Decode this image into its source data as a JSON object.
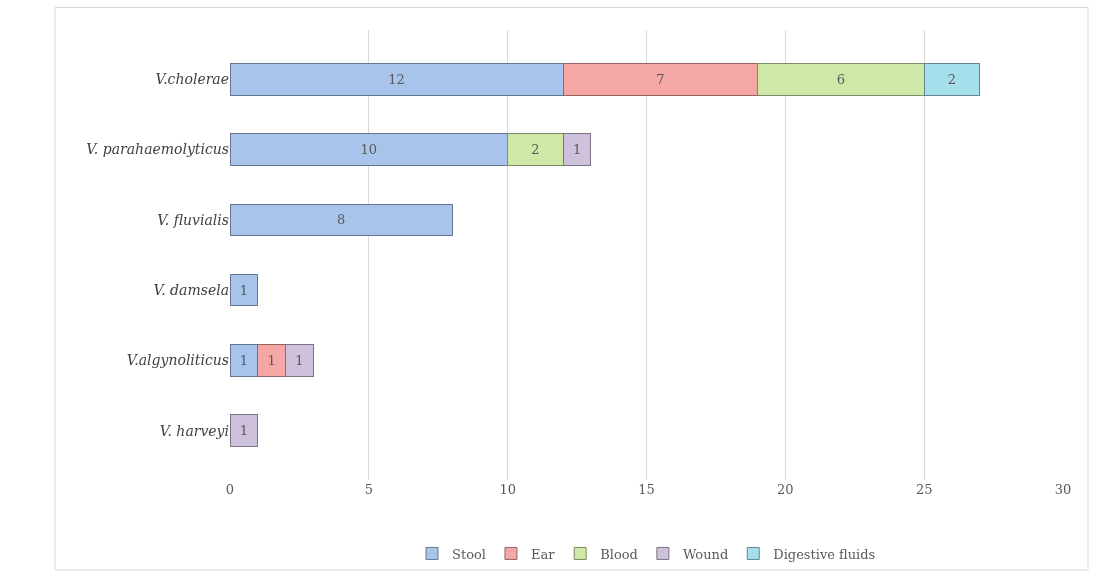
{
  "chart_data": {
    "type": "bar",
    "orientation": "horizontal",
    "stacked": true,
    "data_labels": true,
    "grid": "x",
    "legend": "bottom",
    "categories": [
      "V.cholerae",
      "V. parahaemolyticus",
      "V. fluvialis",
      "V. damsela",
      "V.algynoliticus",
      "V. harveyi"
    ],
    "series": [
      {
        "name": "Stool",
        "color": "#a9c4eb",
        "values": [
          12,
          10,
          8,
          1,
          1,
          null
        ]
      },
      {
        "name": "Ear",
        "color": "#f4a7a5",
        "values": [
          7,
          null,
          null,
          null,
          1,
          null
        ]
      },
      {
        "name": "Blood",
        "color": "#cfe8a8",
        "values": [
          6,
          2,
          null,
          null,
          null,
          null
        ]
      },
      {
        "name": "Wound",
        "color": "#cdc1dc",
        "values": [
          null,
          1,
          null,
          null,
          1,
          1
        ]
      },
      {
        "name": "Digestive fluids",
        "color": "#a6dfec",
        "values": [
          2,
          null,
          null,
          null,
          null,
          null
        ]
      }
    ],
    "xlim": [
      0,
      30
    ],
    "xticks": [
      0,
      5,
      10,
      15,
      20,
      25,
      30
    ]
  }
}
